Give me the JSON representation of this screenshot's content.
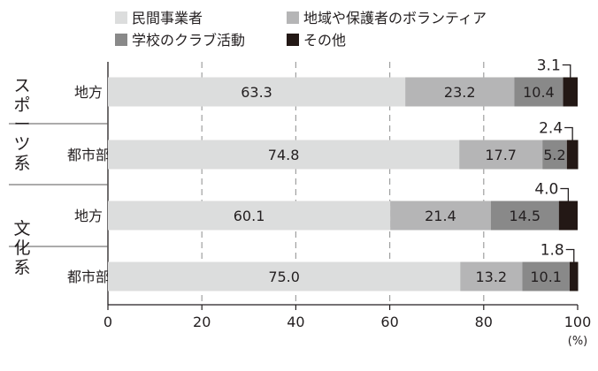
{
  "chart_data": {
    "type": "bar",
    "stacked": true,
    "orientation": "horizontal",
    "unit": "(%)",
    "xlim": [
      0,
      100
    ],
    "x_ticks": [
      "0",
      "20",
      "40",
      "60",
      "80",
      "100"
    ],
    "grid": "vertical dashed",
    "legend_position": "top-left",
    "groups": [
      {
        "label": "スポーツ系",
        "categories": [
          "地方",
          "都市部"
        ]
      },
      {
        "label": "文化系",
        "categories": [
          "地方",
          "都市部"
        ]
      }
    ],
    "categories": [
      "地方",
      "都市部",
      "地方",
      "都市部"
    ],
    "series": [
      {
        "name": "民間事業者",
        "color": "#dcdddd",
        "values": [
          63.3,
          74.8,
          60.1,
          75.0
        ],
        "labels": [
          "63.3",
          "74.8",
          "60.1",
          "75.0"
        ]
      },
      {
        "name": "地域や保護者のボランティア",
        "color": "#b5b5b6",
        "values": [
          23.2,
          17.7,
          21.4,
          13.2
        ],
        "labels": [
          "23.2",
          "17.7",
          "21.4",
          "13.2"
        ]
      },
      {
        "name": "学校のクラブ活動",
        "color": "#898989",
        "values": [
          10.4,
          5.2,
          14.5,
          10.1
        ],
        "labels": [
          "10.4",
          "5.2",
          "14.5",
          "10.1"
        ]
      },
      {
        "name": "その他",
        "color": "#231815",
        "values": [
          3.1,
          2.4,
          4.0,
          1.8
        ],
        "labels": [
          "3.1",
          "2.4",
          "4.0",
          "1.8"
        ]
      }
    ]
  }
}
